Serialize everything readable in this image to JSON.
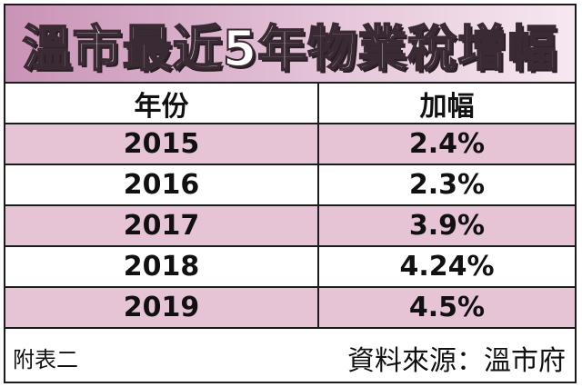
{
  "chart_data": {
    "type": "table",
    "title": "溫市最近5年物業稅增幅",
    "columns": [
      "年份",
      "加幅"
    ],
    "rows": [
      {
        "year": "2015",
        "increase": "2.4%",
        "value": 2.4
      },
      {
        "year": "2016",
        "increase": "2.3%",
        "value": 2.3
      },
      {
        "year": "2017",
        "increase": "3.9%",
        "value": 3.9
      },
      {
        "year": "2018",
        "increase": "4.24%",
        "value": 4.24
      },
      {
        "year": "2019",
        "increase": "4.5%",
        "value": 4.5
      }
    ],
    "note": "附表二",
    "source": "資料來源：溫市府"
  },
  "colors": {
    "banner_start": "#c993b6",
    "banner_end": "#f6e8f1",
    "row_pink": "#e7c3d6",
    "border": "#1c1c1c"
  }
}
